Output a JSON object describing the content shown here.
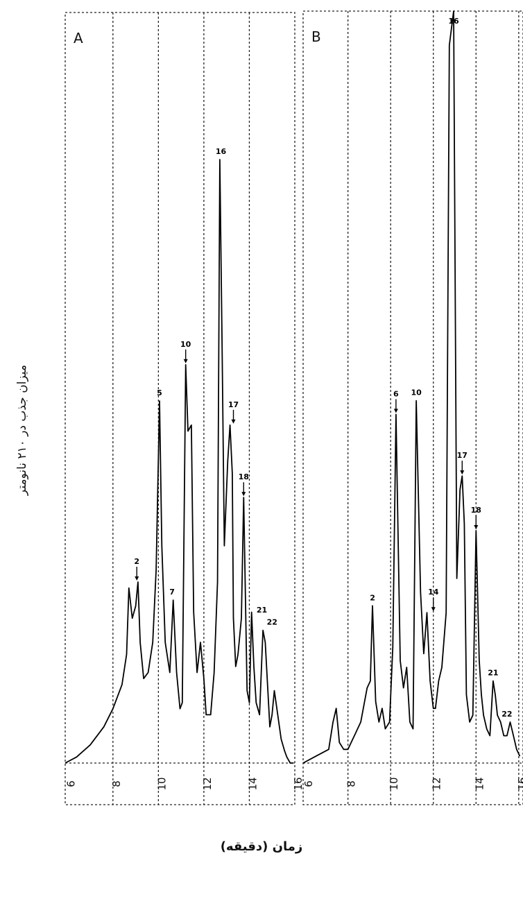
{
  "figure": {
    "ylabel": "میزان جذب در ۲۱۰ نانومتر",
    "xlabel": "زمان (دقیقه)"
  },
  "chart_data": [
    {
      "type": "line",
      "panel_label": "A",
      "xlim": [
        5.9,
        16.0
      ],
      "x_ticks": [
        6,
        8,
        10,
        12,
        14,
        16
      ],
      "x_tick_labels": [
        "6",
        "8",
        "10",
        "12",
        "14",
        "16"
      ],
      "grid": true,
      "x": [
        5.9,
        6.4,
        7.0,
        7.6,
        8.0,
        8.4,
        8.6,
        8.7,
        8.85,
        9.0,
        9.1,
        9.2,
        9.35,
        9.55,
        9.75,
        9.9,
        10.05,
        10.15,
        10.3,
        10.5,
        10.65,
        10.8,
        10.95,
        11.05,
        11.2,
        11.3,
        11.45,
        11.55,
        11.7,
        11.85,
        12.0,
        12.1,
        12.3,
        12.45,
        12.6,
        12.7,
        12.8,
        12.9,
        13.05,
        13.15,
        13.25,
        13.3,
        13.4,
        13.5,
        13.65,
        13.75,
        13.9,
        14.0,
        14.1,
        14.2,
        14.3,
        14.45,
        14.6,
        14.7,
        14.8,
        14.9,
        15.0,
        15.1,
        15.25,
        15.4,
        15.55,
        15.65,
        15.8,
        15.95
      ],
      "y": [
        0,
        0.01,
        0.03,
        0.06,
        0.09,
        0.13,
        0.18,
        0.29,
        0.24,
        0.26,
        0.3,
        0.2,
        0.14,
        0.15,
        0.2,
        0.32,
        0.6,
        0.36,
        0.2,
        0.15,
        0.27,
        0.15,
        0.09,
        0.1,
        0.66,
        0.55,
        0.56,
        0.25,
        0.15,
        0.2,
        0.14,
        0.08,
        0.08,
        0.15,
        0.3,
        1.0,
        0.7,
        0.36,
        0.5,
        0.56,
        0.48,
        0.24,
        0.16,
        0.18,
        0.24,
        0.44,
        0.12,
        0.1,
        0.25,
        0.16,
        0.1,
        0.08,
        0.22,
        0.2,
        0.13,
        0.06,
        0.08,
        0.12,
        0.08,
        0.04,
        0.02,
        0.01,
        0.0,
        0.0
      ],
      "peaks": [
        {
          "label": "2",
          "x": 9.05,
          "y": 0.3,
          "arrow": true
        },
        {
          "label": "5",
          "x": 10.05,
          "y": 0.6,
          "arrow": false
        },
        {
          "label": "7",
          "x": 10.6,
          "y": 0.27,
          "arrow": false
        },
        {
          "label": "10",
          "x": 11.2,
          "y": 0.66,
          "arrow": true
        },
        {
          "label": "16",
          "x": 12.75,
          "y": 1.0,
          "arrow": false
        },
        {
          "label": "17",
          "x": 13.3,
          "y": 0.56,
          "arrow": true
        },
        {
          "label": "18",
          "x": 13.75,
          "y": 0.44,
          "arrow": true
        },
        {
          "label": "21",
          "x": 14.55,
          "y": 0.24,
          "arrow": false
        },
        {
          "label": "22",
          "x": 15.0,
          "y": 0.22,
          "arrow": false
        }
      ]
    },
    {
      "type": "line",
      "panel_label": "B",
      "xlim": [
        5.9,
        16.2
      ],
      "x_ticks": [
        6,
        8,
        10,
        12,
        14,
        16
      ],
      "x_tick_labels": [
        "6",
        "8",
        "10",
        "12",
        "14",
        "16"
      ],
      "grid": true,
      "x": [
        5.9,
        6.5,
        7.1,
        7.3,
        7.45,
        7.6,
        7.8,
        8.0,
        8.3,
        8.6,
        8.9,
        9.05,
        9.15,
        9.3,
        9.45,
        9.6,
        9.75,
        9.95,
        10.1,
        10.25,
        10.45,
        10.6,
        10.75,
        10.9,
        11.05,
        11.2,
        11.4,
        11.55,
        11.7,
        11.85,
        12.0,
        12.1,
        12.25,
        12.4,
        12.6,
        12.75,
        12.95,
        13.1,
        13.25,
        13.35,
        13.45,
        13.55,
        13.7,
        13.85,
        14.0,
        14.15,
        14.25,
        14.35,
        14.5,
        14.65,
        14.8,
        14.9,
        15.0,
        15.15,
        15.3,
        15.45,
        15.6,
        15.75,
        15.9,
        16.05
      ],
      "y": [
        0,
        0.01,
        0.02,
        0.06,
        0.08,
        0.03,
        0.02,
        0.02,
        0.04,
        0.06,
        0.11,
        0.12,
        0.23,
        0.09,
        0.06,
        0.08,
        0.05,
        0.06,
        0.17,
        0.51,
        0.15,
        0.11,
        0.14,
        0.06,
        0.05,
        0.53,
        0.25,
        0.16,
        0.22,
        0.12,
        0.08,
        0.08,
        0.12,
        0.14,
        0.22,
        1.05,
        1.1,
        0.27,
        0.4,
        0.42,
        0.35,
        0.1,
        0.06,
        0.07,
        0.34,
        0.15,
        0.1,
        0.07,
        0.05,
        0.04,
        0.12,
        0.1,
        0.07,
        0.06,
        0.04,
        0.04,
        0.06,
        0.04,
        0.02,
        0.01
      ],
      "peaks": [
        {
          "label": "2",
          "x": 9.15,
          "y": 0.23,
          "arrow": false
        },
        {
          "label": "6",
          "x": 10.25,
          "y": 0.51,
          "arrow": true
        },
        {
          "label": "10",
          "x": 11.2,
          "y": 0.53,
          "arrow": false
        },
        {
          "label": "14",
          "x": 12.0,
          "y": 0.22,
          "arrow": true
        },
        {
          "label": "16",
          "x": 12.95,
          "y": 1.1,
          "arrow": false
        },
        {
          "label": "17",
          "x": 13.35,
          "y": 0.42,
          "arrow": true
        },
        {
          "label": "18",
          "x": 14.0,
          "y": 0.34,
          "arrow": true
        },
        {
          "label": "21",
          "x": 14.8,
          "y": 0.12,
          "arrow": false
        },
        {
          "label": "22",
          "x": 15.45,
          "y": 0.06,
          "arrow": false
        }
      ]
    }
  ]
}
